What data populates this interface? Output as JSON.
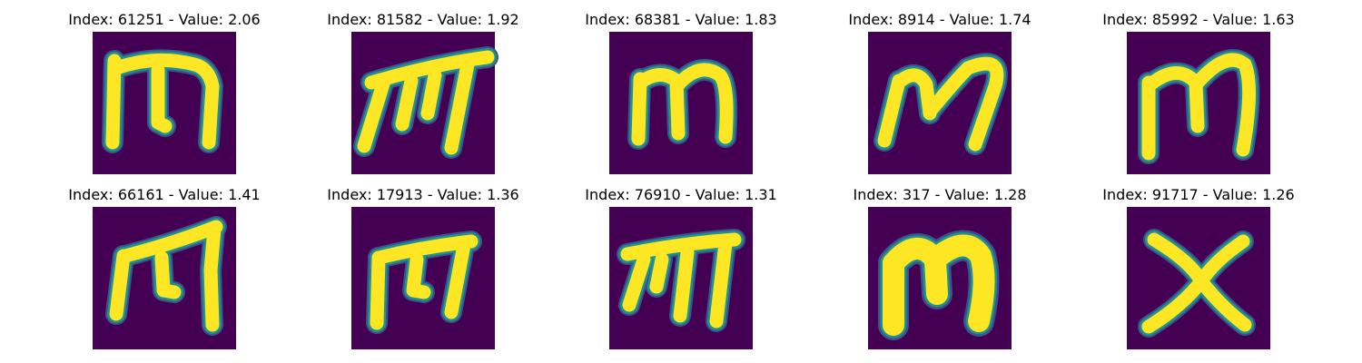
{
  "colors": {
    "background": "#440154",
    "ink": "#fde725",
    "edge_mid": "#21918c",
    "edge_dark": "#3b528b"
  },
  "panels": [
    {
      "title": "Index: 61251 - Value: 2.06",
      "glyph": "m"
    },
    {
      "title": "Index: 81582 - Value: 1.92",
      "glyph": "m"
    },
    {
      "title": "Index: 68381 - Value: 1.83",
      "glyph": "m"
    },
    {
      "title": "Index: 8914 - Value: 1.74",
      "glyph": "m"
    },
    {
      "title": "Index: 85992 - Value: 1.63",
      "glyph": "m"
    },
    {
      "title": "Index: 66161 - Value: 1.41",
      "glyph": "m"
    },
    {
      "title": "Index: 17913 - Value: 1.36",
      "glyph": "m"
    },
    {
      "title": "Index: 76910 - Value: 1.31",
      "glyph": "m"
    },
    {
      "title": "Index: 317 - Value: 1.28",
      "glyph": "m"
    },
    {
      "title": "Index: 91717 - Value: 1.26",
      "glyph": "x"
    }
  ]
}
